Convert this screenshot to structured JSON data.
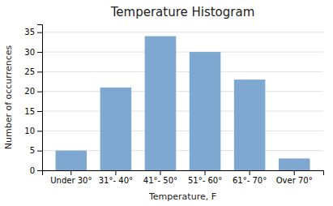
{
  "chart_data": {
    "type": "bar",
    "title": "Temperature Histogram",
    "xlabel": "Temperature, F",
    "ylabel": "Number of occurrences",
    "categories": [
      "Under 30°",
      "31°- 40°",
      "41°- 50°",
      "51°- 60°",
      "61°- 70°",
      "Over 70°"
    ],
    "values": [
      5,
      21,
      34,
      30,
      23,
      3
    ],
    "color": "#7fa8d0",
    "ylim": [
      0,
      37
    ],
    "yticks": [
      0,
      5,
      10,
      15,
      20,
      25,
      30,
      35
    ],
    "grid": true
  }
}
